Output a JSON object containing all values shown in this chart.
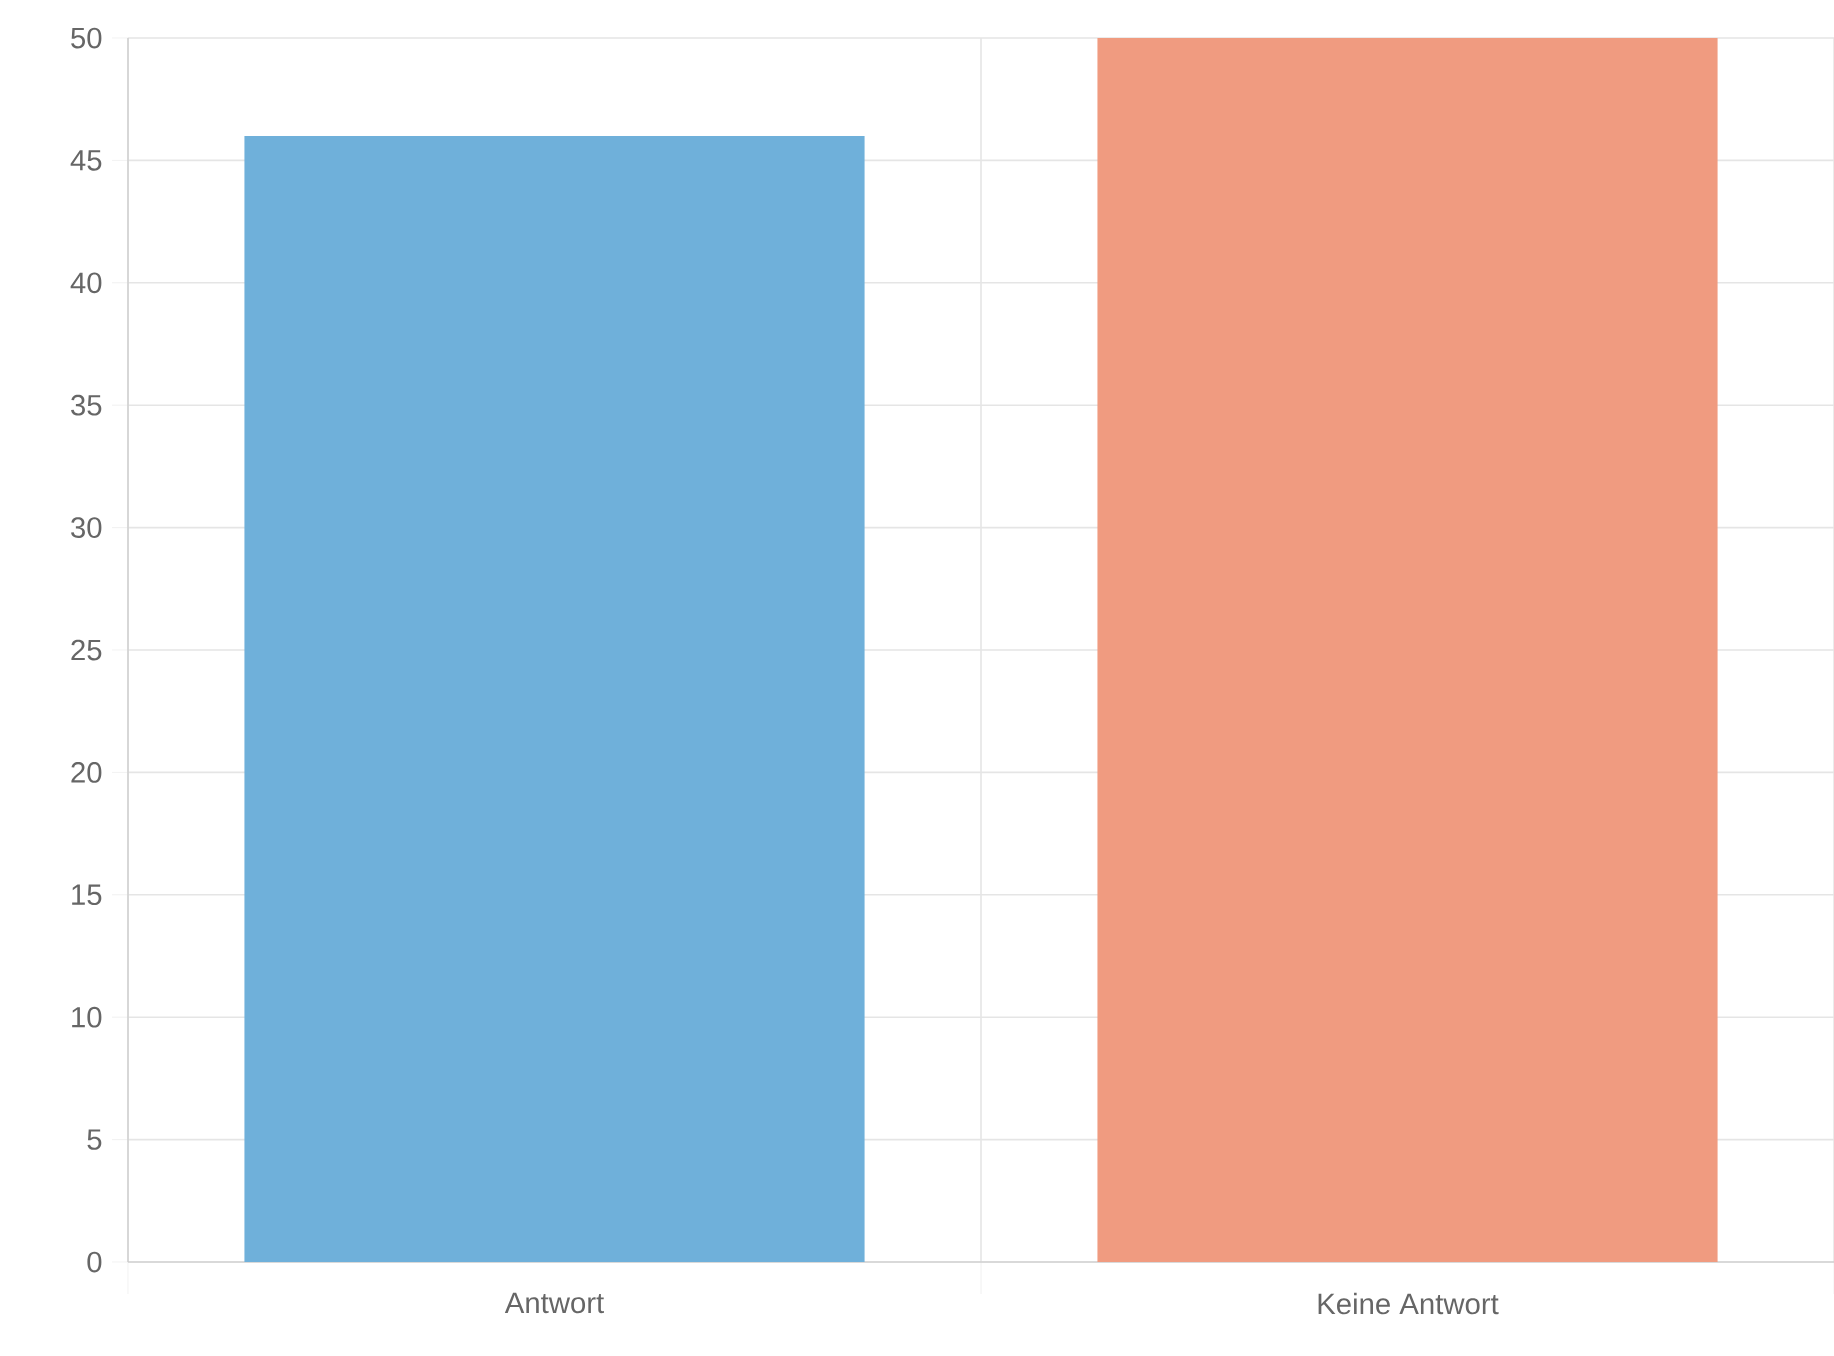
{
  "chart_data": {
    "type": "bar",
    "categories": [
      "Antwort",
      "Keine Antwort"
    ],
    "values": [
      46,
      50
    ],
    "colors": [
      "#6fb0da",
      "#f09b80"
    ],
    "ylim": [
      0,
      50
    ],
    "yticks": [
      0,
      5,
      10,
      15,
      20,
      25,
      30,
      35,
      40,
      45,
      50
    ],
    "grid": true
  }
}
